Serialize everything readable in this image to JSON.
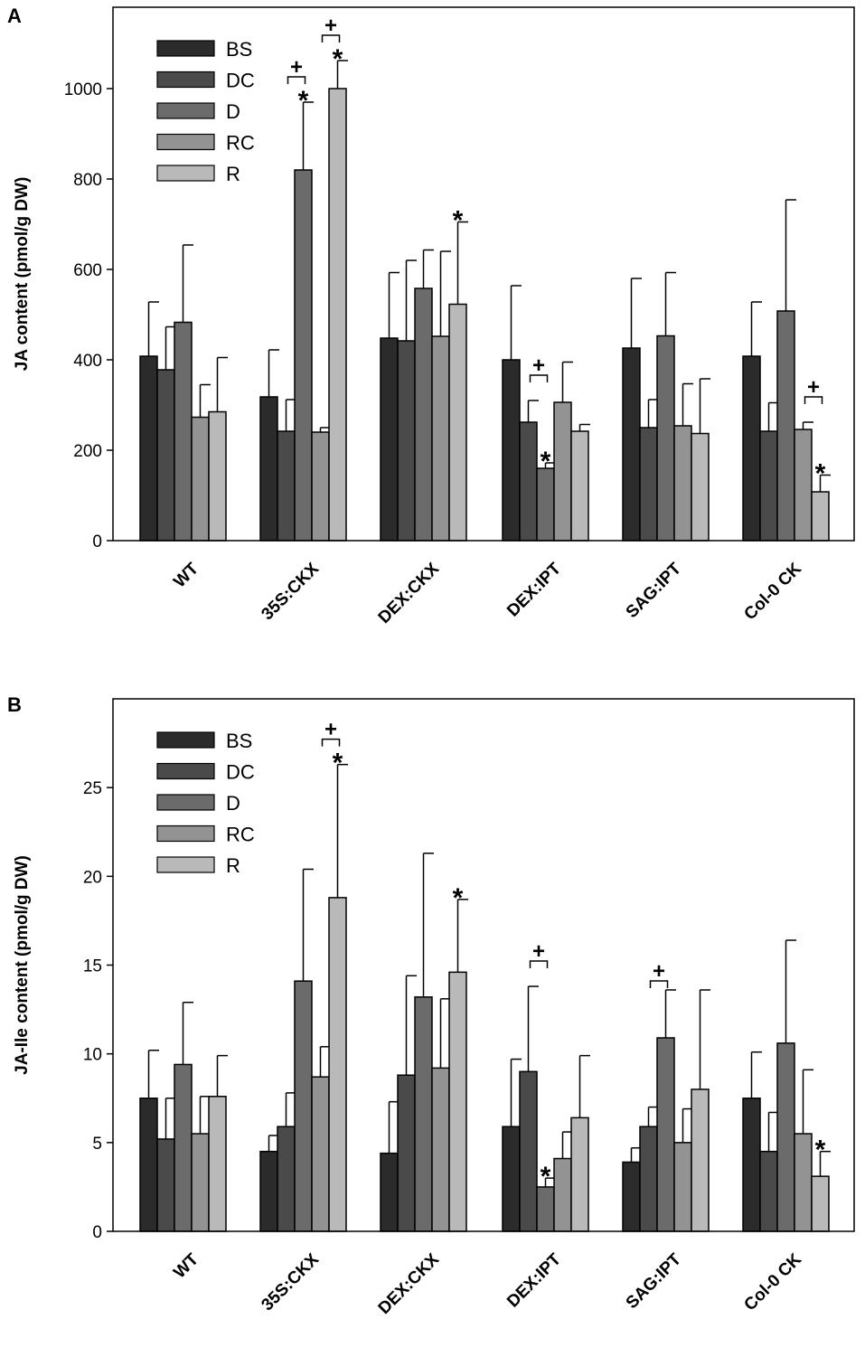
{
  "chart_data": [
    {
      "type": "bar",
      "panel_label": "A",
      "title": "",
      "xlabel": "",
      "ylabel": "JA content (pmol/g DW)",
      "ylim": [
        0,
        1180
      ],
      "yticks": [
        0,
        200,
        400,
        600,
        800,
        1000
      ],
      "categories": [
        "WT",
        "35S:CKX",
        "DEX:CKX",
        "DEX:IPT",
        "SAG:IPT",
        "Col-0 CK"
      ],
      "legend_placement": "top-left",
      "series": [
        {
          "name": "BS",
          "color": "#2b2b2b",
          "values": [
            408,
            318,
            448,
            400,
            426,
            408
          ],
          "errors": [
            120,
            104,
            145,
            164,
            154,
            120
          ]
        },
        {
          "name": "DC",
          "color": "#4a4a4a",
          "values": [
            378,
            242,
            442,
            262,
            250,
            242
          ],
          "errors": [
            95,
            70,
            178,
            48,
            62,
            63
          ]
        },
        {
          "name": "D",
          "color": "#6b6b6b",
          "values": [
            483,
            820,
            558,
            160,
            453,
            508
          ],
          "errors": [
            171,
            150,
            85,
            12,
            140,
            246
          ]
        },
        {
          "name": "RC",
          "color": "#939393",
          "values": [
            273,
            240,
            452,
            306,
            254,
            246
          ],
          "errors": [
            72,
            10,
            188,
            89,
            93,
            16
          ]
        },
        {
          "name": "R",
          "color": "#b9b9b9",
          "values": [
            285,
            1000,
            523,
            242,
            237,
            108
          ],
          "errors": [
            120,
            62,
            182,
            15,
            121,
            37
          ]
        }
      ],
      "annotations": {
        "asterisks": [
          {
            "group": 1,
            "series": 2
          },
          {
            "group": 1,
            "series": 4
          },
          {
            "group": 2,
            "series": 4
          },
          {
            "group": 3,
            "series": 2
          },
          {
            "group": 5,
            "series": 4
          }
        ],
        "brackets": [
          {
            "group": 1,
            "from": 1,
            "to": 2,
            "label": "+"
          },
          {
            "group": 1,
            "from": 3,
            "to": 4,
            "label": "+"
          },
          {
            "group": 3,
            "from": 1,
            "to": 2,
            "label": "+"
          },
          {
            "group": 5,
            "from": 3,
            "to": 4,
            "label": "+"
          }
        ],
        "asterisk_label": "*"
      }
    },
    {
      "type": "bar",
      "panel_label": "B",
      "title": "",
      "xlabel": "",
      "ylabel": "JA-Ile content (pmol/g DW)",
      "ylim": [
        0,
        30
      ],
      "yticks": [
        0,
        5,
        10,
        15,
        20,
        25
      ],
      "categories": [
        "WT",
        "35S:CKX",
        "DEX:CKX",
        "DEX:IPT",
        "SAG:IPT",
        "Col-0 CK"
      ],
      "legend_placement": "top-left",
      "series": [
        {
          "name": "BS",
          "color": "#2b2b2b",
          "values": [
            7.5,
            4.5,
            4.4,
            5.9,
            3.9,
            7.5
          ],
          "errors": [
            2.7,
            0.9,
            2.9,
            3.8,
            0.8,
            2.6
          ]
        },
        {
          "name": "DC",
          "color": "#4a4a4a",
          "values": [
            5.2,
            5.9,
            8.8,
            9.0,
            5.9,
            4.5
          ],
          "errors": [
            2.3,
            1.9,
            5.6,
            4.8,
            1.1,
            2.2
          ]
        },
        {
          "name": "D",
          "color": "#6b6b6b",
          "values": [
            9.4,
            14.1,
            13.2,
            2.5,
            10.9,
            10.6
          ],
          "errors": [
            3.5,
            6.3,
            8.1,
            0.5,
            2.7,
            5.8
          ]
        },
        {
          "name": "RC",
          "color": "#939393",
          "values": [
            5.5,
            8.7,
            9.2,
            4.1,
            5.0,
            5.5
          ],
          "errors": [
            2.1,
            1.7,
            3.9,
            1.5,
            1.9,
            3.6
          ]
        },
        {
          "name": "R",
          "color": "#b9b9b9",
          "values": [
            7.6,
            18.8,
            14.6,
            6.4,
            8.0,
            3.1
          ],
          "errors": [
            2.3,
            7.5,
            4.1,
            3.5,
            5.6,
            1.4
          ]
        }
      ],
      "annotations": {
        "asterisks": [
          {
            "group": 1,
            "series": 4
          },
          {
            "group": 2,
            "series": 4
          },
          {
            "group": 3,
            "series": 2
          },
          {
            "group": 5,
            "series": 4
          }
        ],
        "brackets": [
          {
            "group": 1,
            "from": 3,
            "to": 4,
            "label": "+"
          },
          {
            "group": 3,
            "from": 1,
            "to": 2,
            "label": "+"
          },
          {
            "group": 4,
            "from": 1,
            "to": 2,
            "label": "+"
          }
        ],
        "asterisk_label": "*"
      }
    }
  ]
}
